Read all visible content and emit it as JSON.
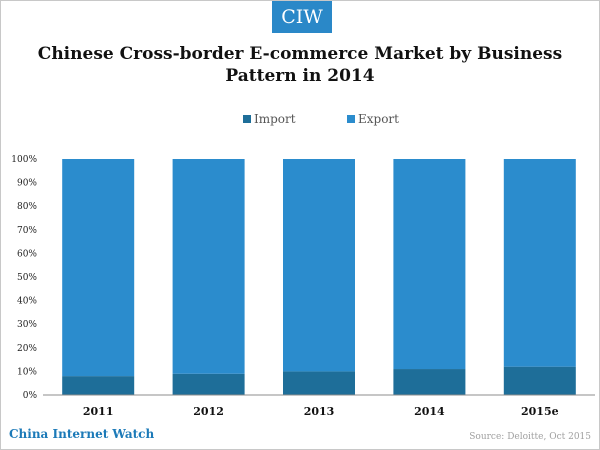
{
  "brand": {
    "badge": "CIW",
    "footer": "China Internet Watch"
  },
  "source": "Source: Deloitte, Oct 2015",
  "colors": {
    "import": "#1e6e99",
    "export": "#2b8ccd",
    "badge": "#2a88c8",
    "axis": "#8c8c8c"
  },
  "chart_data": {
    "type": "bar",
    "stacked": true,
    "title": "Chinese Cross-border E-commerce Market by Business Pattern in 2014",
    "categories": [
      "2011",
      "2012",
      "2013",
      "2014",
      "2015e"
    ],
    "series": [
      {
        "name": "Import",
        "values": [
          8,
          9,
          10,
          11,
          12
        ]
      },
      {
        "name": "Export",
        "values": [
          92,
          91,
          90,
          89,
          88
        ]
      }
    ],
    "ylim": [
      0,
      100
    ],
    "yticks": [
      "0%",
      "10%",
      "20%",
      "30%",
      "40%",
      "50%",
      "60%",
      "70%",
      "80%",
      "90%",
      "100%"
    ],
    "legend_position": "top",
    "grid": false
  }
}
